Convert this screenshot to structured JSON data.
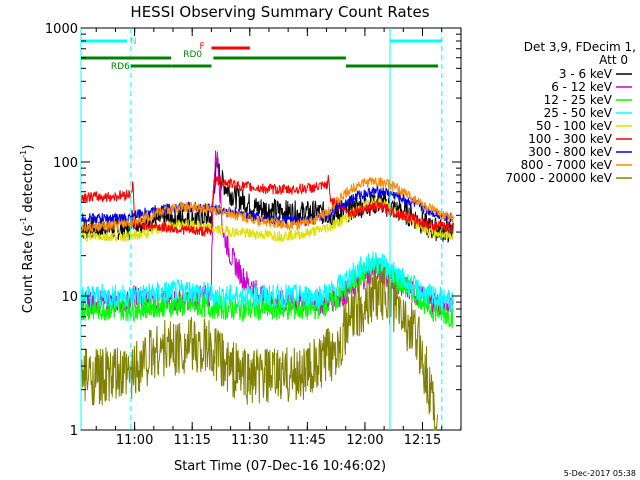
{
  "chart_data": {
    "type": "line",
    "title": "HESSI Observing Summary Count Rates",
    "xlabel": "Start Time (07-Dec-16 10:46:02)",
    "ylabel_main": "Count Rate (s",
    "ylabel_sup1": "-1",
    "ylabel_mid": " detector",
    "ylabel_sup2": "-1",
    "ylabel_end": ")",
    "footer": "5-Dec-2017 05:38",
    "x_unit": "minutes after 10:46:02 (7-Dec-2016)",
    "x_range": [
      0,
      99
    ],
    "y_scale": "log",
    "y_range": [
      1,
      1000
    ],
    "x_ticks": [
      {
        "label": "11:00",
        "value": 13.97
      },
      {
        "label": "11:15",
        "value": 28.97
      },
      {
        "label": "11:30",
        "value": 43.97
      },
      {
        "label": "11:45",
        "value": 58.97
      },
      {
        "label": "12:00",
        "value": 73.97
      },
      {
        "label": "12:15",
        "value": 88.97
      }
    ],
    "y_ticks": [
      {
        "label": "1",
        "value": 1
      },
      {
        "label": "10",
        "value": 10
      },
      {
        "label": "100",
        "value": 100
      },
      {
        "label": "1000",
        "value": 1000
      }
    ],
    "legend_header": [
      "Det 3,9, FDecim 1,",
      "Att 0"
    ],
    "legend_position": "right",
    "series": [
      {
        "name": "3 - 6 keV",
        "color": "#000000",
        "points": [
          [
            0,
            32
          ],
          [
            13,
            32
          ],
          [
            13.5,
            42
          ],
          [
            14,
            36
          ],
          [
            20,
            37
          ],
          [
            28,
            38
          ],
          [
            34,
            38
          ],
          [
            35,
            80
          ],
          [
            35.6,
            95
          ],
          [
            36.3,
            75
          ],
          [
            39,
            58
          ],
          [
            42,
            52
          ],
          [
            45,
            46
          ],
          [
            50,
            44
          ],
          [
            55,
            42
          ],
          [
            62,
            42
          ],
          [
            66,
            40
          ],
          [
            70,
            44
          ],
          [
            74,
            48
          ],
          [
            78,
            50
          ],
          [
            82,
            44
          ],
          [
            86,
            40
          ],
          [
            91,
            32
          ],
          [
            97,
            30
          ]
        ]
      },
      {
        "name": "6 - 12 keV",
        "color": "#cc00cc",
        "points": [
          [
            0,
            9
          ],
          [
            13,
            9
          ],
          [
            14,
            10
          ],
          [
            20,
            9
          ],
          [
            28,
            9.5
          ],
          [
            33.8,
            10
          ],
          [
            34.5,
            60
          ],
          [
            35.2,
            120
          ],
          [
            35.8,
            90
          ],
          [
            37,
            30
          ],
          [
            39,
            20
          ],
          [
            42,
            14
          ],
          [
            44,
            12
          ],
          [
            47,
            10
          ],
          [
            50,
            9
          ],
          [
            56,
            9
          ],
          [
            64,
            9
          ],
          [
            70,
            11
          ],
          [
            74,
            14
          ],
          [
            77,
            16
          ],
          [
            80,
            14
          ],
          [
            84,
            12
          ],
          [
            88,
            10
          ],
          [
            91,
            9
          ],
          [
            97,
            8
          ]
        ]
      },
      {
        "name": "12 - 25 keV",
        "color": "#00ff00",
        "points": [
          [
            0,
            8
          ],
          [
            10,
            8
          ],
          [
            14,
            8
          ],
          [
            20,
            8.5
          ],
          [
            30,
            8.5
          ],
          [
            40,
            8
          ],
          [
            50,
            8
          ],
          [
            60,
            8
          ],
          [
            66,
            9
          ],
          [
            70,
            12
          ],
          [
            74,
            15
          ],
          [
            77,
            17
          ],
          [
            80,
            15
          ],
          [
            84,
            12
          ],
          [
            88,
            10
          ],
          [
            91,
            8
          ],
          [
            97,
            7
          ]
        ]
      },
      {
        "name": "25 - 50 keV",
        "color": "#00ffff",
        "points": [
          [
            0,
            10
          ],
          [
            8,
            10
          ],
          [
            14,
            10
          ],
          [
            20,
            10.5
          ],
          [
            28,
            11
          ],
          [
            36,
            10
          ],
          [
            44,
            10
          ],
          [
            50,
            10
          ],
          [
            56,
            10
          ],
          [
            62,
            10
          ],
          [
            66,
            11
          ],
          [
            70,
            14
          ],
          [
            74,
            17
          ],
          [
            77,
            18
          ],
          [
            80,
            16
          ],
          [
            84,
            13
          ],
          [
            88,
            11
          ],
          [
            91,
            10
          ],
          [
            97,
            9
          ]
        ]
      },
      {
        "name": "50 - 100 keV",
        "color": "#e0e000",
        "points": [
          [
            0,
            28
          ],
          [
            10,
            28
          ],
          [
            14,
            28
          ],
          [
            18,
            30
          ],
          [
            22,
            33
          ],
          [
            28,
            34
          ],
          [
            34,
            32
          ],
          [
            40,
            30
          ],
          [
            46,
            29
          ],
          [
            52,
            28
          ],
          [
            58,
            29
          ],
          [
            62,
            31
          ],
          [
            66,
            34
          ],
          [
            70,
            40
          ],
          [
            74,
            48
          ],
          [
            77,
            50
          ],
          [
            80,
            47
          ],
          [
            84,
            40
          ],
          [
            88,
            34
          ],
          [
            91,
            30
          ],
          [
            97,
            28
          ]
        ]
      },
      {
        "name": "100 - 300 keV",
        "color": "#ff0000",
        "points": [
          [
            0,
            55
          ],
          [
            8,
            55
          ],
          [
            13,
            58
          ],
          [
            13.5,
            70
          ],
          [
            14,
            35
          ],
          [
            20,
            33
          ],
          [
            28,
            31
          ],
          [
            34,
            30
          ],
          [
            34.5,
            72
          ],
          [
            36,
            72
          ],
          [
            42,
            66
          ],
          [
            48,
            63
          ],
          [
            54,
            62
          ],
          [
            60,
            64
          ],
          [
            64,
            66
          ],
          [
            64.5,
            75
          ],
          [
            65,
            52
          ],
          [
            70,
            42
          ],
          [
            74,
            45
          ],
          [
            77,
            47
          ],
          [
            80,
            44
          ],
          [
            84,
            40
          ],
          [
            88,
            36
          ],
          [
            91,
            34
          ],
          [
            97,
            32
          ]
        ]
      },
      {
        "name": "300 - 800 keV",
        "color": "#0000dd",
        "points": [
          [
            0,
            38
          ],
          [
            8,
            38
          ],
          [
            13,
            38
          ],
          [
            14,
            40
          ],
          [
            20,
            44
          ],
          [
            26,
            46
          ],
          [
            30,
            46
          ],
          [
            34,
            45
          ],
          [
            38,
            43
          ],
          [
            44,
            40
          ],
          [
            50,
            37
          ],
          [
            56,
            36
          ],
          [
            60,
            37
          ],
          [
            64,
            40
          ],
          [
            68,
            48
          ],
          [
            72,
            56
          ],
          [
            76,
            60
          ],
          [
            79,
            60
          ],
          [
            82,
            56
          ],
          [
            86,
            50
          ],
          [
            90,
            44
          ],
          [
            94,
            40
          ],
          [
            97,
            38
          ]
        ]
      },
      {
        "name": "800 - 7000 keV",
        "color": "#ff8800",
        "points": [
          [
            0,
            32
          ],
          [
            8,
            33
          ],
          [
            14,
            36
          ],
          [
            20,
            42
          ],
          [
            26,
            46
          ],
          [
            30,
            46
          ],
          [
            34,
            44
          ],
          [
            38,
            42
          ],
          [
            44,
            38
          ],
          [
            50,
            35
          ],
          [
            56,
            34
          ],
          [
            60,
            36
          ],
          [
            64,
            42
          ],
          [
            68,
            55
          ],
          [
            72,
            68
          ],
          [
            76,
            72
          ],
          [
            79,
            70
          ],
          [
            82,
            64
          ],
          [
            86,
            55
          ],
          [
            90,
            46
          ],
          [
            94,
            40
          ],
          [
            97,
            38
          ]
        ]
      },
      {
        "name": "7000 - 20000 keV",
        "color": "#808000",
        "points": [
          [
            0,
            2.5
          ],
          [
            13,
            2.5
          ],
          [
            14,
            3
          ],
          [
            20,
            4
          ],
          [
            28,
            4.3
          ],
          [
            34,
            4
          ],
          [
            38,
            3
          ],
          [
            44,
            2.5
          ],
          [
            50,
            2.5
          ],
          [
            56,
            2.6
          ],
          [
            62,
            3
          ],
          [
            66,
            4
          ],
          [
            70,
            6.5
          ],
          [
            74,
            9
          ],
          [
            77,
            11
          ],
          [
            80,
            10
          ],
          [
            84,
            7
          ],
          [
            88,
            4.5
          ],
          [
            91,
            2
          ],
          [
            93,
            1
          ]
        ]
      }
    ],
    "state_bars": [
      {
        "label": "N",
        "color": "#00ffff",
        "segments": [
          [
            0,
            12
          ]
        ],
        "level": 1
      },
      {
        "label": "",
        "color": "#00ffff",
        "segments": [
          [
            80.5,
            94
          ]
        ],
        "level": 1
      },
      {
        "label": "F",
        "color": "#ff0000",
        "segments": [
          [
            34,
            44
          ]
        ],
        "level": 2
      },
      {
        "label": "RD0",
        "color": "#008000",
        "segments": [
          [
            0,
            23.5
          ],
          [
            34.5,
            69
          ]
        ],
        "level": 3
      },
      {
        "label": "RD6",
        "color": "#008000",
        "segments": [
          [
            13,
            23.5
          ],
          [
            23.5,
            34
          ],
          [
            69,
            93
          ]
        ],
        "level": 4
      }
    ],
    "vertical_markers": [
      {
        "x": 0,
        "color": "#00ffff",
        "style": "solid"
      },
      {
        "x": 13,
        "color": "#00ffff",
        "style": "dashed"
      },
      {
        "x": 80.5,
        "color": "#00ffff",
        "style": "solid"
      },
      {
        "x": 94,
        "color": "#00ffff",
        "style": "dashed"
      }
    ]
  }
}
